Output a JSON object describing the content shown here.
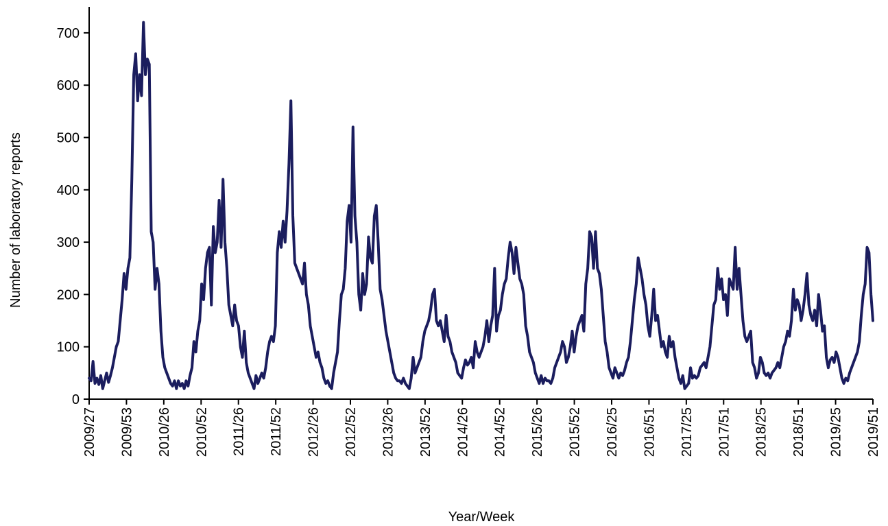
{
  "chart_data": {
    "type": "line",
    "xlabel": "Year/Week",
    "ylabel": "Number of laboratory reports",
    "ylim": [
      0,
      750
    ],
    "yticks": [
      0,
      100,
      200,
      300,
      400,
      500,
      600,
      700
    ],
    "xticks": [
      "2009/27",
      "2009/53",
      "2010/26",
      "2010/52",
      "2011/26",
      "2011/52",
      "2012/26",
      "2012/52",
      "2013/26",
      "2013/52",
      "2014/26",
      "2014/52",
      "2015/26",
      "2015/52",
      "2016/25",
      "2016/51",
      "2017/25",
      "2017/51",
      "2018/25",
      "2018/51",
      "2019/25",
      "2019/51"
    ],
    "grid": false,
    "legend": "none",
    "line_color": "#1b1d5e",
    "series": [
      {
        "values": [
          40,
          35,
          72,
          30,
          40,
          28,
          45,
          20,
          35,
          50,
          32,
          45,
          60,
          80,
          100,
          110,
          150,
          190,
          240,
          210,
          250,
          270,
          420,
          620,
          660,
          570,
          620,
          580,
          720,
          620,
          650,
          640,
          320,
          300,
          210,
          250,
          220,
          130,
          80,
          60,
          50,
          40,
          30,
          25,
          35,
          20,
          35,
          25,
          30,
          20,
          35,
          25,
          45,
          60,
          110,
          90,
          130,
          150,
          220,
          190,
          250,
          280,
          290,
          180,
          330,
          280,
          300,
          380,
          290,
          420,
          300,
          250,
          180,
          160,
          140,
          180,
          150,
          140,
          100,
          80,
          130,
          70,
          50,
          40,
          30,
          20,
          45,
          30,
          40,
          50,
          40,
          60,
          90,
          110,
          120,
          110,
          140,
          280,
          320,
          290,
          340,
          300,
          360,
          450,
          570,
          350,
          260,
          250,
          240,
          230,
          220,
          260,
          200,
          180,
          140,
          120,
          100,
          80,
          90,
          70,
          60,
          40,
          30,
          35,
          25,
          20,
          50,
          70,
          90,
          150,
          200,
          210,
          250,
          340,
          370,
          300,
          520,
          350,
          300,
          200,
          170,
          240,
          200,
          220,
          310,
          270,
          260,
          350,
          370,
          300,
          210,
          190,
          160,
          130,
          110,
          90,
          70,
          50,
          40,
          35,
          35,
          30,
          40,
          30,
          25,
          20,
          40,
          80,
          50,
          60,
          70,
          80,
          110,
          130,
          140,
          150,
          170,
          200,
          210,
          150,
          140,
          150,
          130,
          110,
          160,
          120,
          110,
          90,
          80,
          70,
          50,
          45,
          40,
          60,
          75,
          65,
          70,
          80,
          60,
          110,
          90,
          80,
          90,
          100,
          120,
          150,
          110,
          140,
          160,
          250,
          130,
          160,
          170,
          200,
          220,
          230,
          270,
          300,
          280,
          240,
          290,
          260,
          230,
          220,
          200,
          140,
          120,
          90,
          80,
          70,
          50,
          40,
          30,
          45,
          30,
          40,
          35,
          35,
          30,
          40,
          60,
          70,
          80,
          90,
          110,
          100,
          70,
          80,
          100,
          130,
          90,
          120,
          140,
          150,
          160,
          130,
          220,
          250,
          320,
          310,
          250,
          320,
          250,
          240,
          210,
          160,
          110,
          90,
          60,
          50,
          40,
          60,
          50,
          40,
          50,
          45,
          55,
          70,
          80,
          110,
          150,
          190,
          220,
          270,
          250,
          230,
          200,
          180,
          140,
          120,
          160,
          210,
          150,
          160,
          130,
          100,
          110,
          90,
          80,
          120,
          100,
          110,
          80,
          60,
          40,
          30,
          45,
          20,
          25,
          30,
          60,
          40,
          45,
          40,
          45,
          60,
          65,
          70,
          60,
          80,
          100,
          140,
          180,
          190,
          250,
          210,
          230,
          190,
          200,
          160,
          230,
          220,
          210,
          290,
          210,
          250,
          200,
          150,
          120,
          110,
          120,
          130,
          70,
          60,
          40,
          50,
          80,
          70,
          50,
          45,
          50,
          40,
          50,
          55,
          60,
          70,
          60,
          80,
          100,
          110,
          130,
          120,
          150,
          210,
          170,
          190,
          180,
          150,
          170,
          200,
          240,
          180,
          160,
          150,
          170,
          140,
          200,
          170,
          130,
          140,
          80,
          60,
          75,
          80,
          70,
          90,
          80,
          60,
          40,
          30,
          40,
          35,
          50,
          60,
          70,
          80,
          90,
          110,
          160,
          200,
          220,
          290,
          280,
          200,
          150
        ]
      }
    ]
  }
}
